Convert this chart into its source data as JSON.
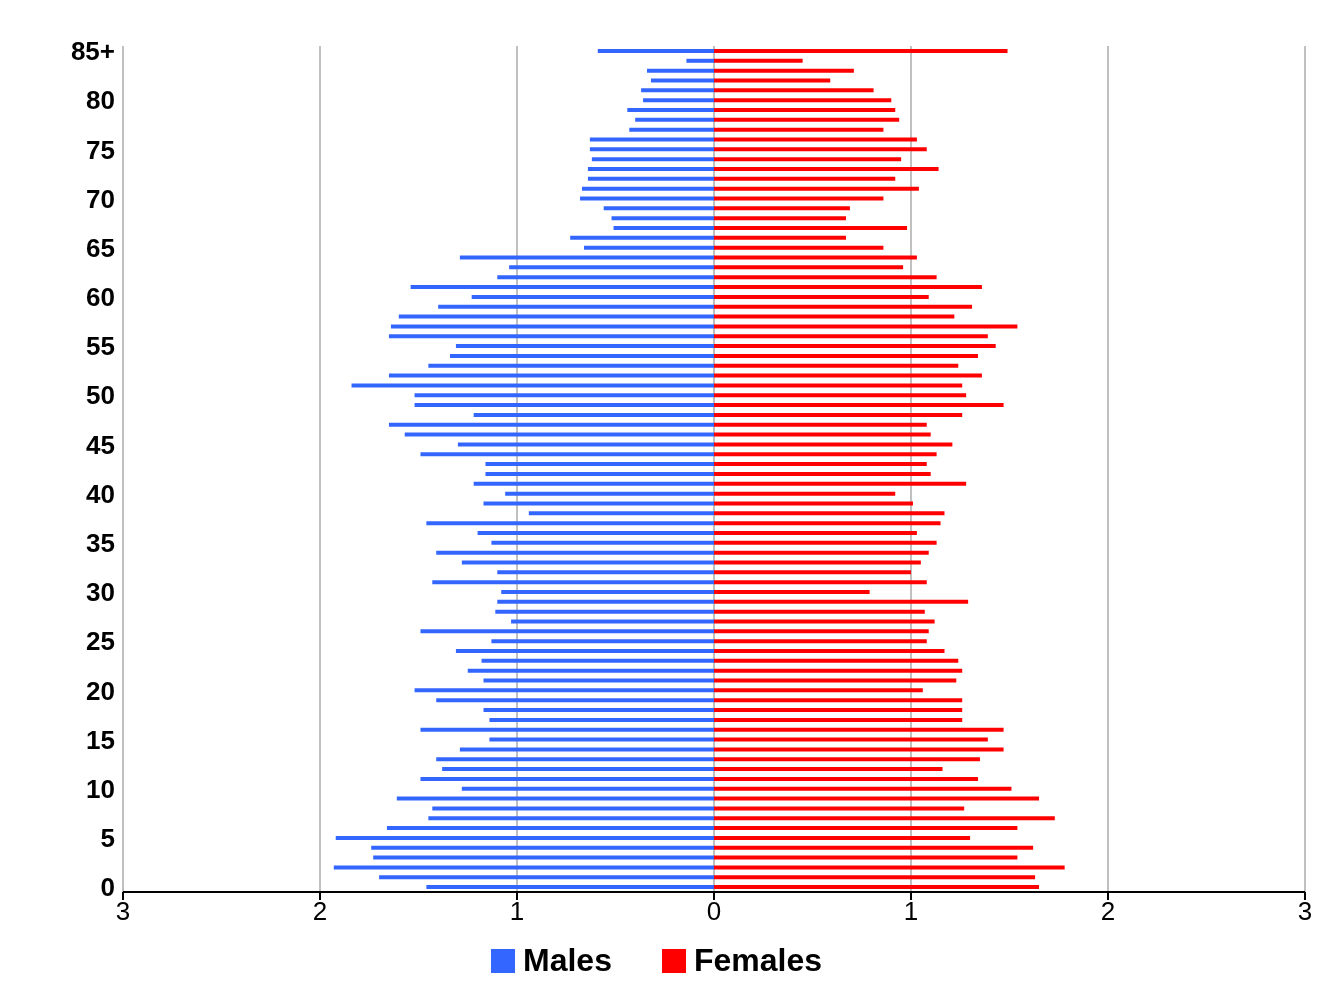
{
  "chart_data": {
    "type": "bar",
    "orientation": "horizontal",
    "stacked": true,
    "categories": [
      "85+",
      null,
      null,
      null,
      null,
      "80",
      null,
      null,
      null,
      null,
      "75",
      null,
      null,
      null,
      null,
      "70",
      null,
      null,
      null,
      null,
      "65",
      null,
      null,
      null,
      null,
      "60",
      null,
      null,
      null,
      null,
      "55",
      null,
      null,
      null,
      null,
      "50",
      null,
      null,
      null,
      null,
      "45",
      null,
      null,
      null,
      null,
      "40",
      null,
      null,
      null,
      null,
      "35",
      null,
      null,
      null,
      null,
      "30",
      null,
      null,
      null,
      null,
      "25",
      null,
      null,
      null,
      null,
      "20",
      null,
      null,
      null,
      null,
      "15",
      null,
      null,
      null,
      null,
      "10",
      null,
      null,
      null,
      null,
      "5",
      null,
      null,
      null,
      null,
      "0"
    ],
    "series": [
      {
        "name": "Males",
        "color": "#3366ff",
        "values": [
          -0.59,
          -0.14,
          -0.34,
          -0.32,
          -0.37,
          -0.36,
          -0.44,
          -0.4,
          -0.43,
          -0.63,
          -0.63,
          -0.62,
          -0.64,
          -0.64,
          -0.67,
          -0.68,
          -0.56,
          -0.52,
          -0.51,
          -0.73,
          -0.66,
          -1.29,
          -1.04,
          -1.1,
          -1.54,
          -1.23,
          -1.4,
          -1.6,
          -1.64,
          -1.65,
          -1.31,
          -1.34,
          -1.45,
          -1.65,
          -1.84,
          -1.52,
          -1.52,
          -1.22,
          -1.65,
          -1.57,
          -1.3,
          -1.49,
          -1.16,
          -1.16,
          -1.22,
          -1.06,
          -1.17,
          -0.94,
          -1.46,
          -1.2,
          -1.13,
          -1.41,
          -1.28,
          -1.1,
          -1.43,
          -1.08,
          -1.1,
          -1.11,
          -1.03,
          -1.49,
          -1.13,
          -1.31,
          -1.18,
          -1.25,
          -1.17,
          -1.52,
          -1.41,
          -1.17,
          -1.14,
          -1.49,
          -1.14,
          -1.29,
          -1.41,
          -1.38,
          -1.49,
          -1.28,
          -1.61,
          -1.43,
          -1.45,
          -1.66,
          -1.92,
          -1.74,
          -1.73,
          -1.93,
          -1.7,
          -1.46
        ]
      },
      {
        "name": "Females",
        "color": "#ff0000",
        "values": [
          1.49,
          0.45,
          0.71,
          0.59,
          0.81,
          0.9,
          0.92,
          0.94,
          0.86,
          1.03,
          1.08,
          0.95,
          1.14,
          0.92,
          1.04,
          0.86,
          0.69,
          0.67,
          0.98,
          0.67,
          0.86,
          1.03,
          0.96,
          1.13,
          1.36,
          1.09,
          1.31,
          1.22,
          1.54,
          1.39,
          1.43,
          1.34,
          1.24,
          1.36,
          1.26,
          1.28,
          1.47,
          1.26,
          1.08,
          1.1,
          1.21,
          1.13,
          1.08,
          1.1,
          1.28,
          0.92,
          1.01,
          1.17,
          1.15,
          1.03,
          1.13,
          1.09,
          1.05,
          1,
          1.08,
          0.79,
          1.29,
          1.07,
          1.12,
          1.09,
          1.08,
          1.17,
          1.24,
          1.26,
          1.23,
          1.06,
          1.26,
          1.26,
          1.26,
          1.47,
          1.39,
          1.47,
          1.35,
          1.16,
          1.34,
          1.51,
          1.65,
          1.27,
          1.73,
          1.54,
          1.3,
          1.62,
          1.54,
          1.78,
          1.63,
          1.65
        ]
      }
    ],
    "xlim": [
      -3,
      3
    ],
    "xticks": [
      {
        "value": -3,
        "label": "3"
      },
      {
        "value": -2,
        "label": "2"
      },
      {
        "value": -1,
        "label": "1"
      },
      0,
      1,
      2,
      3
    ],
    "grid": "x",
    "legend": "bottom"
  }
}
